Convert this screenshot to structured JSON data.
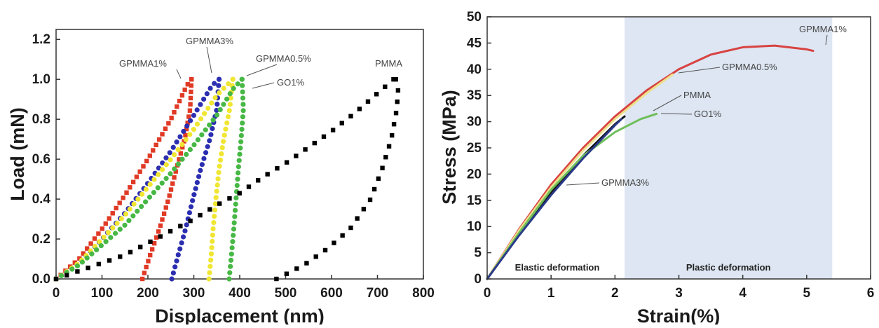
{
  "chart_data": [
    {
      "type": "scatter",
      "xlabel": "Displacement (nm)",
      "ylabel": "Load (mN)",
      "xlim": [
        0,
        800
      ],
      "ylim": [
        0,
        1.25
      ],
      "xticks": [
        "0",
        "100",
        "200",
        "300",
        "400",
        "500",
        "600",
        "700",
        "800"
      ],
      "yticks": [
        "0.0",
        "0.2",
        "0.4",
        "0.6",
        "0.8",
        "1.0",
        "1.2"
      ],
      "grid": false,
      "series": [
        {
          "name": "GPMMA1%",
          "color": "#e03a26",
          "marker": "square",
          "loading": [
            [
              0,
              0
            ],
            [
              50,
              0.1
            ],
            [
              100,
              0.25
            ],
            [
              150,
              0.42
            ],
            [
              200,
              0.6
            ],
            [
              250,
              0.8
            ],
            [
              285,
              0.97
            ],
            [
              295,
              1.0
            ]
          ],
          "unloading": [
            [
              295,
              1.0
            ],
            [
              292,
              0.85
            ],
            [
              280,
              0.7
            ],
            [
              262,
              0.55
            ],
            [
              245,
              0.4
            ],
            [
              225,
              0.25
            ],
            [
              205,
              0.12
            ],
            [
              188,
              0.0
            ]
          ]
        },
        {
          "name": "GPMMA3%",
          "color": "#2b2eb0",
          "marker": "circle",
          "loading": [
            [
              0,
              0
            ],
            [
              50,
              0.08
            ],
            [
              100,
              0.2
            ],
            [
              150,
              0.33
            ],
            [
              200,
              0.48
            ],
            [
              250,
              0.64
            ],
            [
              300,
              0.82
            ],
            [
              340,
              0.97
            ],
            [
              355,
              1.0
            ]
          ],
          "unloading": [
            [
              355,
              1.0
            ],
            [
              350,
              0.85
            ],
            [
              335,
              0.7
            ],
            [
              315,
              0.55
            ],
            [
              298,
              0.4
            ],
            [
              282,
              0.25
            ],
            [
              266,
              0.12
            ],
            [
              252,
              0.0
            ]
          ]
        },
        {
          "name": "GPMMA0.5%",
          "color": "#f0e632",
          "marker": "circle",
          "loading": [
            [
              0,
              0
            ],
            [
              50,
              0.08
            ],
            [
              100,
              0.2
            ],
            [
              150,
              0.32
            ],
            [
              200,
              0.46
            ],
            [
              250,
              0.6
            ],
            [
              300,
              0.75
            ],
            [
              350,
              0.92
            ],
            [
              385,
              1.0
            ]
          ],
          "unloading": [
            [
              385,
              1.0
            ],
            [
              378,
              0.85
            ],
            [
              365,
              0.7
            ],
            [
              355,
              0.55
            ],
            [
              348,
              0.4
            ],
            [
              342,
              0.25
            ],
            [
              338,
              0.12
            ],
            [
              333,
              0.0
            ]
          ]
        },
        {
          "name": "GO1%",
          "color": "#47b845",
          "marker": "circle",
          "loading": [
            [
              0,
              0
            ],
            [
              50,
              0.07
            ],
            [
              100,
              0.17
            ],
            [
              150,
              0.27
            ],
            [
              200,
              0.4
            ],
            [
              250,
              0.53
            ],
            [
              300,
              0.67
            ],
            [
              350,
              0.82
            ],
            [
              385,
              0.95
            ],
            [
              405,
              1.0
            ]
          ],
          "unloading": [
            [
              405,
              1.0
            ],
            [
              408,
              0.85
            ],
            [
              403,
              0.7
            ],
            [
              397,
              0.55
            ],
            [
              392,
              0.4
            ],
            [
              387,
              0.25
            ],
            [
              382,
              0.12
            ],
            [
              377,
              0.0
            ]
          ]
        },
        {
          "name": "PMMA",
          "color": "#000000",
          "marker": "square",
          "loading": [
            [
              0,
              0
            ],
            [
              50,
              0.04
            ],
            [
              100,
              0.08
            ],
            [
              150,
              0.12
            ],
            [
              200,
              0.18
            ],
            [
              250,
              0.24
            ],
            [
              300,
              0.3
            ],
            [
              350,
              0.37
            ],
            [
              400,
              0.43
            ],
            [
              450,
              0.51
            ],
            [
              500,
              0.58
            ],
            [
              550,
              0.66
            ],
            [
              600,
              0.74
            ],
            [
              650,
              0.83
            ],
            [
              700,
              0.93
            ],
            [
              735,
              1.0
            ]
          ],
          "unloading": [
            [
              740,
              1.0
            ],
            [
              745,
              0.95
            ],
            [
              742,
              0.85
            ],
            [
              730,
              0.7
            ],
            [
              710,
              0.55
            ],
            [
              685,
              0.4
            ],
            [
              640,
              0.25
            ],
            [
              590,
              0.15
            ],
            [
              540,
              0.07
            ],
            [
              480,
              0.0
            ]
          ]
        }
      ],
      "annotations": [
        {
          "text": "GPMMA1%",
          "at": [
            295,
            1.0
          ]
        },
        {
          "text": "GPMMA3%",
          "at": [
            345,
            1.0
          ]
        },
        {
          "text": "GPMMA0.5%",
          "at": [
            385,
            1.0
          ]
        },
        {
          "text": "GO1%",
          "at": [
            408,
            0.98
          ]
        },
        {
          "text": "PMMA",
          "at": [
            740,
            1.03
          ]
        }
      ]
    },
    {
      "type": "line",
      "xlabel": "Strain(%)",
      "ylabel": "Stress (MPa)",
      "xlim": [
        0,
        6
      ],
      "ylim": [
        0,
        50
      ],
      "xticks": [
        "0",
        "1",
        "2",
        "3",
        "4",
        "5",
        "6"
      ],
      "yticks": [
        "0",
        "5",
        "10",
        "15",
        "20",
        "25",
        "30",
        "35",
        "40",
        "45",
        "50"
      ],
      "grid": false,
      "regions": [
        {
          "label": "Elastic deformation",
          "from": 0,
          "to": 2.15
        },
        {
          "label": "Plastic deformation",
          "from": 2.15,
          "to": 5.4,
          "color": "#dde6f2"
        }
      ],
      "series": [
        {
          "name": "GPMMA1%",
          "color": "#d84242",
          "x": [
            0,
            0.5,
            1,
            1.5,
            2,
            2.5,
            3,
            3.5,
            4,
            4.5,
            5,
            5.1
          ],
          "y": [
            0,
            9.5,
            18,
            25,
            31,
            36,
            40,
            42.8,
            44.2,
            44.5,
            43.8,
            43.5
          ]
        },
        {
          "name": "GPMMA0.5%",
          "color": "#eee08a",
          "x": [
            0,
            0.5,
            1,
            1.5,
            2,
            2.5,
            2.9
          ],
          "y": [
            0,
            9.3,
            17.5,
            24.5,
            30.5,
            35.5,
            39
          ]
        },
        {
          "name": "PMMA",
          "color": "#111111",
          "x": [
            0,
            0.5,
            1,
            1.5,
            2,
            2.15
          ],
          "y": [
            0,
            8.5,
            16.5,
            23.5,
            29.5,
            31
          ]
        },
        {
          "name": "GO1%",
          "color": "#6fbe5b",
          "x": [
            0,
            0.5,
            1,
            1.5,
            2,
            2.4,
            2.65
          ],
          "y": [
            0,
            8.8,
            17,
            23.5,
            28,
            30.5,
            31.5
          ]
        },
        {
          "name": "GPMMA3%",
          "color": "#2b3a8a",
          "x": [
            0,
            0.5,
            1,
            1.5,
            2,
            2.1
          ],
          "y": [
            0,
            8.3,
            16,
            23,
            29.3,
            30.5
          ]
        }
      ],
      "annotations": [
        {
          "text": "GPMMA1%",
          "at": [
            5.05,
            44
          ]
        },
        {
          "text": "GPMMA0.5%",
          "at": [
            2.9,
            39
          ]
        },
        {
          "text": "PMMA",
          "at": [
            2.15,
            31.5
          ]
        },
        {
          "text": "GO1%",
          "at": [
            2.65,
            31.5
          ]
        },
        {
          "text": "GPMMA3%",
          "at": [
            1.25,
            17.5
          ]
        }
      ]
    }
  ]
}
